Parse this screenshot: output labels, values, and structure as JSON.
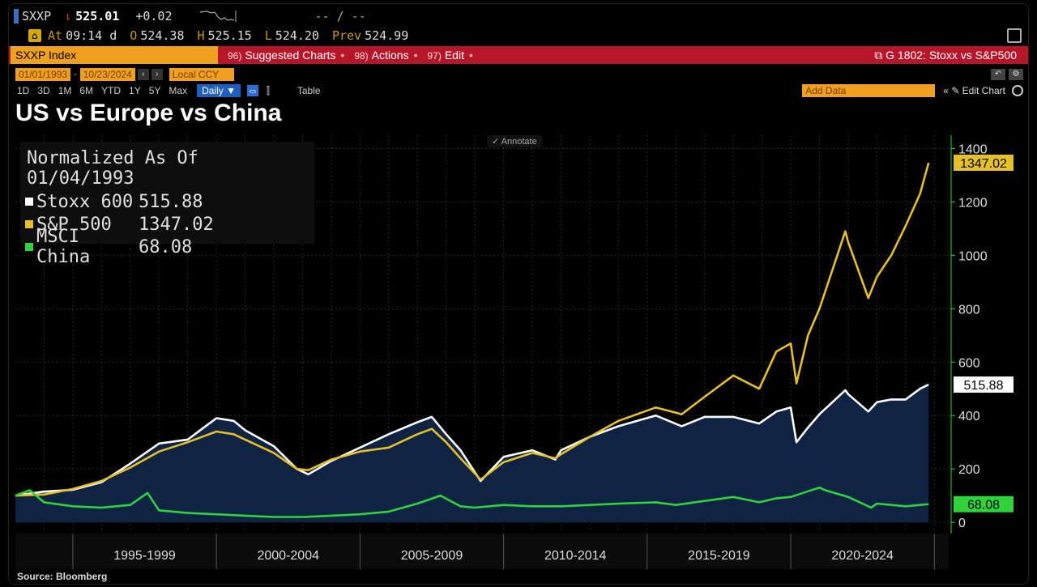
{
  "header": {
    "symbol": "SXXP",
    "price": "525.01",
    "change": "+0.02",
    "dashes": "-- / --",
    "time_prefix": "At",
    "time": "09:14 d",
    "open_label": "O",
    "open": "524.38",
    "high_label": "H",
    "high": "525.15",
    "low_label": "L",
    "low": "524.20",
    "prev_label": "Prev",
    "prev": "524.99"
  },
  "actionbar": {
    "index_box": "SXXP Index",
    "suggested_num": "96)",
    "suggested": "Suggested Charts",
    "actions_num": "98)",
    "actions": "Actions",
    "edit_num": "97)",
    "edit": "Edit",
    "right": "G 1802: Stoxx vs S&P500"
  },
  "dates": {
    "start": "01/01/1993",
    "end": "10/23/2024",
    "ccy": "Local CCY"
  },
  "ranges": [
    "1D",
    "3D",
    "1M",
    "6M",
    "YTD",
    "1Y",
    "5Y",
    "Max"
  ],
  "toolbar": {
    "daily": "Daily ▼",
    "table": "Table",
    "add_data": "Add Data",
    "edit_chart": "Edit Chart",
    "annotate": "Annotate"
  },
  "legend": {
    "header": "Normalized As Of 01/04/1993",
    "items": [
      {
        "name": "Stoxx 600",
        "value": "515.88",
        "color": "#ffffff"
      },
      {
        "name": "S&P 500",
        "value": "1347.02",
        "color": "#e6c029"
      },
      {
        "name": "MSCI China",
        "value": "68.08",
        "color": "#2fd33a"
      }
    ]
  },
  "source": "Source: Bloomberg",
  "chart_data": {
    "type": "line",
    "title": "US vs Europe vs China",
    "subtitle": "Normalized As Of 01/04/1993",
    "x_tick_labels": [
      "1995-1999",
      "2000-2004",
      "2005-2009",
      "2010-2014",
      "2015-2019",
      "2020-2024"
    ],
    "y_ticks": [
      0,
      200,
      400,
      600,
      800,
      1000,
      1200,
      1400
    ],
    "ylim": [
      -30,
      1450
    ],
    "xlim": [
      1993.0,
      2025.5
    ],
    "grid": true,
    "legend_position": "top-left",
    "series": [
      {
        "name": "Stoxx 600",
        "color": "#ffffff",
        "last_value": "515.88",
        "filled": true,
        "x": [
          1993.0,
          1994.0,
          1995.0,
          1996.0,
          1997.0,
          1998.0,
          1999.0,
          2000.0,
          2000.6,
          2001.0,
          2002.0,
          2002.8,
          2003.2,
          2004.0,
          2005.0,
          2006.0,
          2007.0,
          2007.5,
          2008.0,
          2008.5,
          2009.2,
          2010.0,
          2011.0,
          2011.8,
          2012.0,
          2013.0,
          2014.0,
          2015.3,
          2016.2,
          2017.0,
          2018.0,
          2018.9,
          2019.5,
          2020.0,
          2020.2,
          2020.6,
          2021.0,
          2021.9,
          2022.0,
          2022.7,
          2023.0,
          2023.5,
          2024.0,
          2024.5,
          2024.8
        ],
        "y": [
          100,
          115,
          122,
          150,
          220,
          295,
          310,
          390,
          380,
          345,
          285,
          200,
          180,
          230,
          280,
          330,
          375,
          395,
          330,
          270,
          155,
          245,
          270,
          235,
          270,
          320,
          360,
          400,
          360,
          395,
          395,
          370,
          415,
          430,
          300,
          355,
          405,
          495,
          480,
          415,
          450,
          460,
          460,
          500,
          516
        ]
      },
      {
        "name": "S&P 500",
        "color": "#e6c029",
        "last_value": "1347.02",
        "filled": false,
        "x": [
          1993.0,
          1994.0,
          1995.0,
          1996.0,
          1997.0,
          1998.0,
          1999.0,
          2000.0,
          2000.6,
          2001.0,
          2002.0,
          2002.8,
          2003.2,
          2004.0,
          2005.0,
          2006.0,
          2007.0,
          2007.5,
          2008.0,
          2008.5,
          2009.2,
          2010.0,
          2011.0,
          2011.8,
          2012.0,
          2013.0,
          2014.0,
          2015.3,
          2016.2,
          2017.0,
          2018.0,
          2018.9,
          2019.5,
          2020.0,
          2020.2,
          2020.6,
          2021.0,
          2021.9,
          2022.0,
          2022.7,
          2023.0,
          2023.5,
          2024.0,
          2024.5,
          2024.8
        ],
        "y": [
          100,
          104,
          125,
          155,
          205,
          265,
          300,
          340,
          330,
          310,
          260,
          200,
          195,
          235,
          265,
          280,
          330,
          350,
          300,
          240,
          160,
          225,
          260,
          240,
          255,
          320,
          380,
          430,
          405,
          470,
          550,
          500,
          640,
          670,
          520,
          700,
          800,
          1090,
          1050,
          840,
          920,
          1000,
          1110,
          1230,
          1347
        ]
      },
      {
        "name": "MSCI China",
        "color": "#2fd33a",
        "last_value": "68.08",
        "filled": false,
        "x": [
          1993.0,
          1993.5,
          1994.0,
          1995.0,
          1996.0,
          1997.0,
          1997.6,
          1998.0,
          1999.0,
          2000.0,
          2001.0,
          2002.0,
          2003.0,
          2004.0,
          2005.0,
          2006.0,
          2007.0,
          2007.8,
          2008.5,
          2009.0,
          2010.0,
          2011.0,
          2012.0,
          2013.0,
          2014.0,
          2015.3,
          2016.0,
          2017.0,
          2018.0,
          2018.9,
          2019.5,
          2020.0,
          2021.0,
          2021.2,
          2022.0,
          2022.8,
          2023.0,
          2024.0,
          2024.8
        ],
        "y": [
          100,
          120,
          75,
          60,
          55,
          65,
          110,
          45,
          35,
          30,
          25,
          20,
          20,
          25,
          30,
          40,
          70,
          100,
          60,
          55,
          65,
          60,
          60,
          65,
          70,
          75,
          65,
          80,
          95,
          75,
          90,
          95,
          130,
          120,
          95,
          55,
          70,
          60,
          68
        ]
      }
    ]
  }
}
